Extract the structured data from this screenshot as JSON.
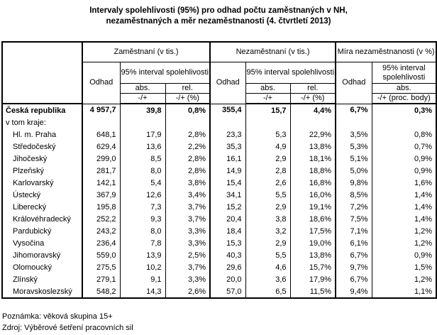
{
  "title": {
    "line1": "Intervaly spolehlivosti (95%) pro odhad počtu zaměstnaných v NH,",
    "line2": "nezaměstnaných a měr nezaměstnanosti (4. čtvrtletí 2013)"
  },
  "table": {
    "groups": [
      {
        "label": "Zaměstnaní (v tis.)"
      },
      {
        "label": "Nezaměstnaní (v tis.)"
      },
      {
        "label": "Míra nezaměstnanosti (v %)"
      }
    ],
    "headers": {
      "odhad": "Odhad",
      "interval": "95% interval spolehlivosti",
      "abs": "abs.",
      "rel": "rel.",
      "pm": "-/+",
      "pm_pct": "-/+ (%)",
      "pm_points": "-/+ (proc. body)"
    },
    "rows": [
      {
        "label": "Česká republika",
        "indent": false,
        "bold": true,
        "values": [
          "4 957,7",
          "39,8",
          "0,8%",
          "355,4",
          "15,7",
          "4,4%",
          "6,7%",
          "0,3%"
        ]
      },
      {
        "label": "v tom kraje:",
        "indent": false,
        "bold": false,
        "values": [
          "",
          "",
          "",
          "",
          "",
          "",
          "",
          ""
        ]
      },
      {
        "label": "Hl. m. Praha",
        "indent": true,
        "bold": false,
        "values": [
          "648,1",
          "17,9",
          "2,8%",
          "23,3",
          "5,3",
          "22,9%",
          "3,5%",
          "0,8%"
        ]
      },
      {
        "label": "Středočeský",
        "indent": true,
        "bold": false,
        "values": [
          "629,4",
          "13,6",
          "2,2%",
          "35,3",
          "4,9",
          "13,8%",
          "5,3%",
          "0,7%"
        ]
      },
      {
        "label": "Jihočeský",
        "indent": true,
        "bold": false,
        "values": [
          "299,0",
          "8,5",
          "2,8%",
          "16,1",
          "2,9",
          "18,1%",
          "5,1%",
          "0,9%"
        ]
      },
      {
        "label": "Plzeňský",
        "indent": true,
        "bold": false,
        "values": [
          "281,7",
          "8,0",
          "2,8%",
          "14,9",
          "2,8",
          "18,8%",
          "5,0%",
          "0,9%"
        ]
      },
      {
        "label": "Karlovarský",
        "indent": true,
        "bold": false,
        "values": [
          "142,1",
          "5,4",
          "3,8%",
          "15,4",
          "2,6",
          "16,8%",
          "9,8%",
          "1,6%"
        ]
      },
      {
        "label": "Ústecký",
        "indent": true,
        "bold": false,
        "values": [
          "367,9",
          "12,6",
          "3,4%",
          "34,1",
          "5,5",
          "16,0%",
          "8,5%",
          "1,4%"
        ]
      },
      {
        "label": "Liberecký",
        "indent": true,
        "bold": false,
        "values": [
          "195,8",
          "7,3",
          "3,7%",
          "15,2",
          "2,9",
          "19,1%",
          "7,2%",
          "1,4%"
        ]
      },
      {
        "label": "Královéhradecký",
        "indent": true,
        "bold": false,
        "values": [
          "252,2",
          "9,3",
          "3,7%",
          "20,4",
          "3,8",
          "18,6%",
          "7,5%",
          "1,4%"
        ]
      },
      {
        "label": "Pardubický",
        "indent": true,
        "bold": false,
        "values": [
          "243,2",
          "8,0",
          "3,3%",
          "18,4",
          "3,2",
          "17,5%",
          "7,1%",
          "1,2%"
        ]
      },
      {
        "label": "Vysočina",
        "indent": true,
        "bold": false,
        "values": [
          "236,4",
          "7,8",
          "3,3%",
          "15,3",
          "2,9",
          "19,0%",
          "6,1%",
          "1,2%"
        ]
      },
      {
        "label": "Jihomoravský",
        "indent": true,
        "bold": false,
        "values": [
          "559,0",
          "13,9",
          "2,5%",
          "40,3",
          "5,5",
          "13,8%",
          "6,7%",
          "0,9%"
        ]
      },
      {
        "label": "Olomoucký",
        "indent": true,
        "bold": false,
        "values": [
          "275,5",
          "10,2",
          "3,7%",
          "29,6",
          "4,6",
          "15,7%",
          "9,7%",
          "1,5%"
        ]
      },
      {
        "label": "Zlínský",
        "indent": true,
        "bold": false,
        "values": [
          "279,1",
          "9,1",
          "3,3%",
          "20,0",
          "3,6",
          "17,9%",
          "6,7%",
          "1,2%"
        ]
      },
      {
        "label": "Moravskoslezský",
        "indent": true,
        "bold": false,
        "values": [
          "548,2",
          "14,3",
          "2,6%",
          "57,0",
          "6,5",
          "11,5%",
          "9,4%",
          "1,1%"
        ]
      }
    ]
  },
  "notes": {
    "note": "Poznámka: věková skupina 15+",
    "source": "Zdroj: Výběrové šetření pracovních sil"
  }
}
